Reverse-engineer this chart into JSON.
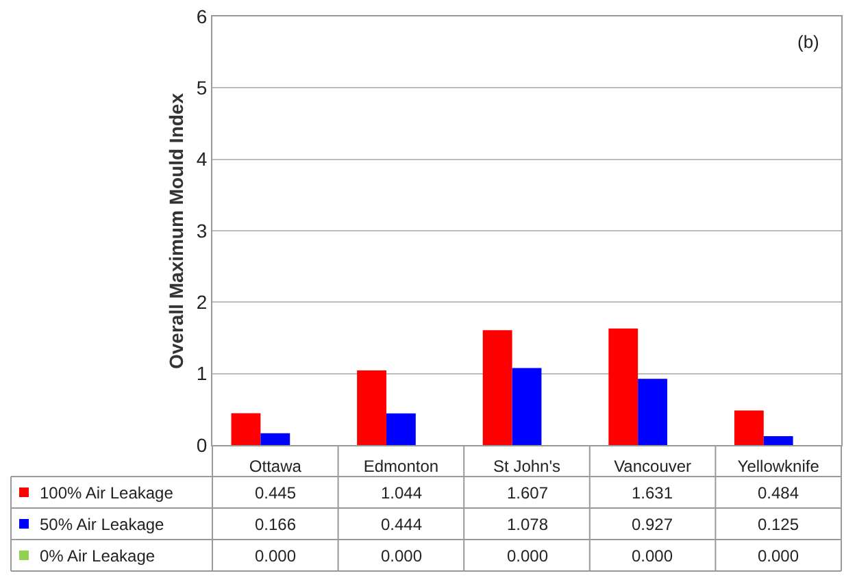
{
  "chart_data": {
    "type": "bar",
    "ylabel": "Overall Maximum Mould Index",
    "categories": [
      "Ottawa",
      "Edmonton",
      "St John's",
      "Vancouver",
      "Yellowknife"
    ],
    "series": [
      {
        "name": "100% Air Leakage",
        "color": "#ff0000",
        "values": [
          0.445,
          1.044,
          1.607,
          1.631,
          0.484
        ],
        "value_labels": [
          "0.445",
          "1.044",
          "1.607",
          "1.631",
          "0.484"
        ]
      },
      {
        "name": "50% Air Leakage",
        "color": "#0000ff",
        "values": [
          0.166,
          0.444,
          1.078,
          0.927,
          0.125
        ],
        "value_labels": [
          "0.166",
          "0.444",
          "1.078",
          "0.927",
          "0.125"
        ]
      },
      {
        "name": "0% Air Leakage",
        "color": "#92d050",
        "values": [
          0,
          0,
          0,
          0,
          0
        ],
        "value_labels": [
          "0.000",
          "0.000",
          "0.000",
          "0.000",
          "0.000"
        ]
      }
    ],
    "ylim": [
      0,
      6
    ],
    "yticks": [
      0,
      1,
      2,
      3,
      4,
      5,
      6
    ],
    "grid": "y",
    "legend": "bottom",
    "annotations": [
      "(b)"
    ]
  }
}
